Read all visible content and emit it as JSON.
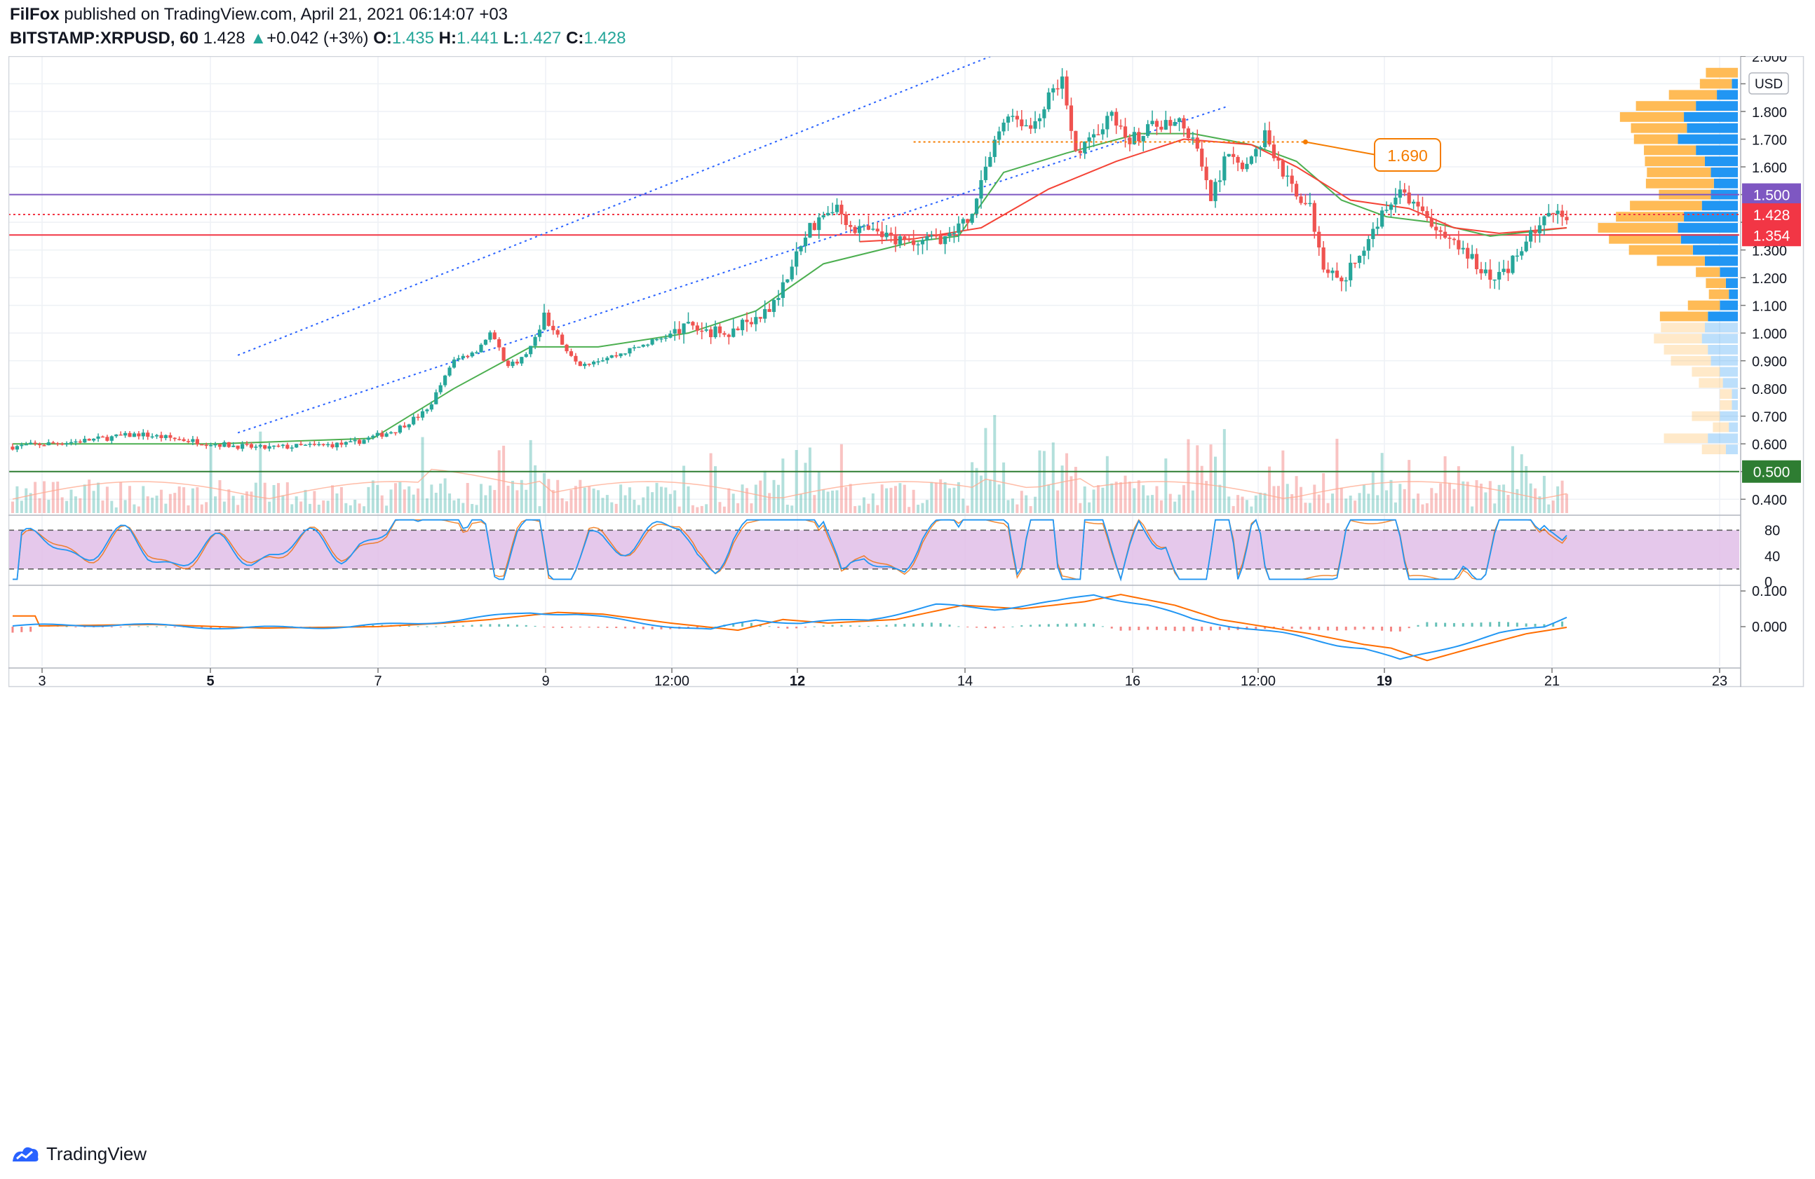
{
  "header": {
    "publisher": "FilFox",
    "published_text": "published on TradingView.com, April 21, 2021 06:14:07 +03",
    "symbol": "BITSTAMP:XRPUSD, 60",
    "last": "1.428",
    "change_arrow": "▲",
    "change": "+0.042 (+3%)",
    "o_label": "O:",
    "o_value": "1.435",
    "h_label": "H:",
    "h_value": "1.441",
    "l_label": "L:",
    "l_value": "1.427",
    "c_label": "C:",
    "c_value": "1.428"
  },
  "footer": {
    "brand": "TradingView",
    "logo_icon": "tradingview-logo-icon"
  },
  "colors": {
    "up": "#26a69a",
    "down": "#ef5350",
    "ema_green": "#4caf50",
    "ema_red": "#f44336",
    "channel": "#2962ff",
    "level_purple": "#7e57c2",
    "level_red": "#f23645",
    "level_green": "#2e7d32",
    "orange": "#f57c00",
    "rsi_fill": "#e1bee7",
    "blue_line": "#2196f3",
    "orange_line": "#ff6d00",
    "vp_up": "#2196f3",
    "vp_down": "#ffb74d"
  },
  "chart_data": {
    "type": "candlestick",
    "currency_label": "USD",
    "price_axis": [
      "2.000",
      "1.900",
      "1.800",
      "1.700",
      "1.600",
      "1.500",
      "1.400",
      "1.300",
      "1.200",
      "1.100",
      "1.000",
      "0.900",
      "0.800",
      "0.700",
      "0.600",
      "0.500",
      "0.400"
    ],
    "price_range": [
      0.35,
      2.0
    ],
    "x_axis": [
      "3",
      "5",
      "7",
      "9",
      "12:00",
      "12",
      "14",
      "16",
      "12:00",
      "19",
      "21",
      "23"
    ],
    "x_axis_bold": [
      "5",
      "12",
      "19"
    ],
    "price_path": [
      [
        0,
        0.59
      ],
      [
        15,
        0.61
      ],
      [
        28,
        0.635
      ],
      [
        45,
        0.6
      ],
      [
        55,
        0.585
      ],
      [
        75,
        0.6
      ],
      [
        85,
        0.65
      ],
      [
        92,
        0.72
      ],
      [
        98,
        0.9
      ],
      [
        103,
        0.94
      ],
      [
        106,
        1.0
      ],
      [
        110,
        0.88
      ],
      [
        114,
        0.92
      ],
      [
        118,
        1.06
      ],
      [
        122,
        0.96
      ],
      [
        126,
        0.89
      ],
      [
        134,
        0.92
      ],
      [
        142,
        0.97
      ],
      [
        150,
        1.02
      ],
      [
        158,
        1.0
      ],
      [
        166,
        1.05
      ],
      [
        172,
        1.2
      ],
      [
        177,
        1.38
      ],
      [
        182,
        1.46
      ],
      [
        187,
        1.38
      ],
      [
        195,
        1.34
      ],
      [
        200,
        1.32
      ],
      [
        207,
        1.35
      ],
      [
        212,
        1.4
      ],
      [
        216,
        1.6
      ],
      [
        221,
        1.8
      ],
      [
        226,
        1.74
      ],
      [
        230,
        1.85
      ],
      [
        233,
        1.93
      ],
      [
        236,
        1.65
      ],
      [
        240,
        1.72
      ],
      [
        244,
        1.78
      ],
      [
        248,
        1.7
      ],
      [
        254,
        1.75
      ],
      [
        258,
        1.78
      ],
      [
        262,
        1.7
      ],
      [
        266,
        1.48
      ],
      [
        270,
        1.66
      ],
      [
        274,
        1.6
      ],
      [
        278,
        1.72
      ],
      [
        283,
        1.55
      ],
      [
        288,
        1.45
      ],
      [
        291,
        1.25
      ],
      [
        295,
        1.17
      ],
      [
        300,
        1.32
      ],
      [
        304,
        1.42
      ],
      [
        308,
        1.52
      ],
      [
        312,
        1.44
      ],
      [
        318,
        1.34
      ],
      [
        324,
        1.28
      ],
      [
        328,
        1.18
      ],
      [
        332,
        1.24
      ],
      [
        337,
        1.36
      ],
      [
        342,
        1.44
      ],
      [
        345,
        1.43
      ]
    ],
    "ema_fast": [
      [
        0,
        0.6
      ],
      [
        45,
        0.6
      ],
      [
        80,
        0.62
      ],
      [
        98,
        0.8
      ],
      [
        115,
        0.95
      ],
      [
        130,
        0.95
      ],
      [
        150,
        1.0
      ],
      [
        165,
        1.08
      ],
      [
        180,
        1.25
      ],
      [
        200,
        1.33
      ],
      [
        210,
        1.35
      ],
      [
        220,
        1.58
      ],
      [
        234,
        1.65
      ],
      [
        250,
        1.72
      ],
      [
        262,
        1.72
      ],
      [
        275,
        1.68
      ],
      [
        285,
        1.62
      ],
      [
        295,
        1.48
      ],
      [
        305,
        1.42
      ],
      [
        315,
        1.4
      ],
      [
        328,
        1.35
      ],
      [
        345,
        1.38
      ]
    ],
    "ema_slow": [
      [
        188,
        1.33
      ],
      [
        200,
        1.34
      ],
      [
        215,
        1.38
      ],
      [
        230,
        1.52
      ],
      [
        245,
        1.62
      ],
      [
        260,
        1.7
      ],
      [
        275,
        1.68
      ],
      [
        285,
        1.6
      ],
      [
        297,
        1.48
      ],
      [
        310,
        1.45
      ],
      [
        320,
        1.38
      ],
      [
        330,
        1.36
      ],
      [
        345,
        1.38
      ]
    ],
    "channel_upper": [
      [
        50,
        0.92
      ],
      [
        225,
        2.05
      ]
    ],
    "channel_lower": [
      [
        50,
        0.64
      ],
      [
        270,
        1.82
      ]
    ],
    "horizontal_levels": [
      {
        "value": 1.5,
        "label": "1.500",
        "color": "#7e57c2",
        "style": "solid"
      },
      {
        "value": 1.428,
        "label": "1.428",
        "color": "#f23645",
        "style": "dotted"
      },
      {
        "value": 1.354,
        "label": "1.354",
        "color": "#f23645",
        "style": "solid"
      },
      {
        "value": 0.5,
        "label": "0.500",
        "color": "#2e7d32",
        "style": "solid"
      }
    ],
    "annotation": {
      "text": "1.690",
      "value": 1.69,
      "line_from_bar": 200,
      "line_to_bar": 287
    },
    "volume_profile": [
      [
        1.94,
        0.4,
        0.0
      ],
      [
        1.9,
        0.4,
        0.1
      ],
      [
        1.86,
        0.6,
        0.35
      ],
      [
        1.82,
        0.75,
        0.7
      ],
      [
        1.78,
        0.8,
        0.9
      ],
      [
        1.74,
        0.7,
        0.85
      ],
      [
        1.7,
        0.55,
        1.0
      ],
      [
        1.66,
        0.65,
        0.7
      ],
      [
        1.62,
        0.75,
        0.55
      ],
      [
        1.58,
        0.8,
        0.45
      ],
      [
        1.54,
        0.85,
        0.4
      ],
      [
        1.5,
        0.65,
        0.45
      ],
      [
        1.46,
        0.9,
        0.6
      ],
      [
        1.42,
        0.85,
        0.9
      ],
      [
        1.38,
        1.0,
        1.0
      ],
      [
        1.34,
        0.9,
        0.95
      ],
      [
        1.3,
        0.8,
        0.75
      ],
      [
        1.26,
        0.6,
        0.55
      ],
      [
        1.22,
        0.3,
        0.3
      ],
      [
        1.18,
        0.25,
        0.2
      ],
      [
        1.14,
        0.25,
        0.15
      ],
      [
        1.1,
        0.4,
        0.3
      ],
      [
        1.06,
        0.6,
        0.5
      ],
      [
        1.02,
        0.55,
        0.55
      ],
      [
        0.98,
        0.6,
        0.6
      ],
      [
        0.94,
        0.55,
        0.5
      ],
      [
        0.9,
        0.5,
        0.45
      ],
      [
        0.86,
        0.35,
        0.3
      ],
      [
        0.82,
        0.3,
        0.25
      ],
      [
        0.78,
        0.15,
        0.1
      ],
      [
        0.74,
        0.15,
        0.1
      ],
      [
        0.7,
        0.35,
        0.3
      ],
      [
        0.66,
        0.2,
        0.15
      ],
      [
        0.62,
        0.55,
        0.5
      ],
      [
        0.58,
        0.3,
        0.2
      ]
    ],
    "rsi_axis": [
      "80",
      "40",
      "0"
    ],
    "rsi_band": [
      20,
      80
    ],
    "macd_axis": [
      "0.100",
      "0.000"
    ],
    "macd_range": [
      -0.11,
      0.11
    ]
  }
}
